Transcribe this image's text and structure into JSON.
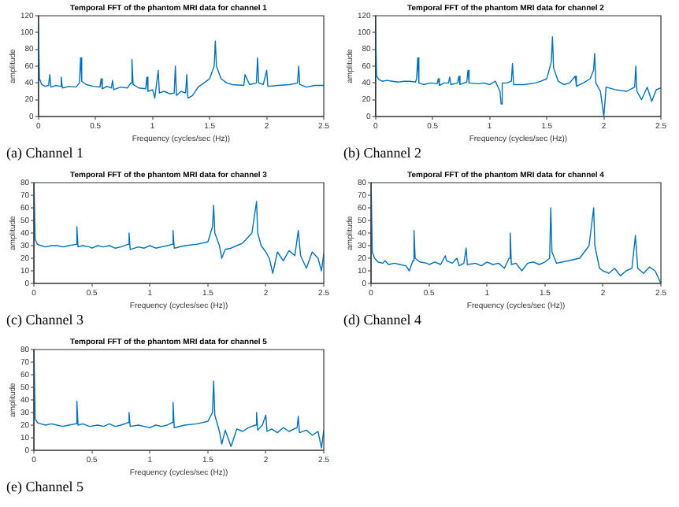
{
  "chart_data": [
    {
      "type": "line",
      "title": "Temporal FFT of the phantom MRI data for channel 1",
      "xlabel": "Frequency (cycles/sec (Hz))",
      "ylabel": "amplitude",
      "annotations": [
        "(a) Channel 1"
      ],
      "xlim": [
        0,
        2.5
      ],
      "xticks": [
        0,
        0.5,
        1,
        1.5,
        2,
        2.5
      ],
      "ylim": [
        0,
        120
      ],
      "yticks": [
        0,
        20,
        40,
        60,
        80,
        100,
        120
      ],
      "series": [
        {
          "color": "#0072bd",
          "x": [
            0,
            0.01,
            0.03,
            0.06,
            0.09,
            0.1,
            0.11,
            0.15,
            0.19,
            0.2,
            0.21,
            0.27,
            0.33,
            0.36,
            0.37,
            0.38,
            0.42,
            0.48,
            0.54,
            0.55,
            0.56,
            0.6,
            0.64,
            0.65,
            0.66,
            0.72,
            0.78,
            0.81,
            0.82,
            0.83,
            0.88,
            0.94,
            0.95,
            0.96,
            1.0,
            1.02,
            1.05,
            1.06,
            1.1,
            1.15,
            1.19,
            1.2,
            1.21,
            1.25,
            1.29,
            1.3,
            1.31,
            1.35,
            1.4,
            1.45,
            1.5,
            1.54,
            1.55,
            1.56,
            1.6,
            1.65,
            1.7,
            1.8,
            1.81,
            1.85,
            1.91,
            1.92,
            1.93,
            1.97,
            2.0,
            2.01,
            2.1,
            2.2,
            2.27,
            2.28,
            2.29,
            2.35,
            2.42,
            2.5
          ],
          "values": [
            110,
            45,
            38,
            36,
            37,
            50,
            35,
            37,
            36,
            47,
            34,
            36,
            35,
            40,
            70,
            42,
            38,
            36,
            35,
            45,
            33,
            36,
            34,
            43,
            32,
            35,
            34,
            40,
            68,
            38,
            34,
            33,
            47,
            30,
            32,
            22,
            55,
            28,
            30,
            27,
            28,
            60,
            25,
            30,
            28,
            50,
            22,
            25,
            35,
            40,
            45,
            60,
            90,
            60,
            45,
            40,
            38,
            37,
            50,
            38,
            40,
            70,
            40,
            38,
            55,
            36,
            37,
            38,
            40,
            60,
            38,
            35,
            37,
            37
          ]
        }
      ]
    },
    {
      "type": "line",
      "title": "Temporal FFT of the phantom MRI data for channel 2",
      "xlabel": "Frequency (cycles/sec (Hz))",
      "ylabel": "amplitude",
      "annotations": [
        "(b) Channel 2"
      ],
      "xlim": [
        0,
        2.5
      ],
      "xticks": [
        0,
        0.5,
        1,
        1.5,
        2,
        2.5
      ],
      "ylim": [
        0,
        120
      ],
      "yticks": [
        0,
        20,
        40,
        60,
        80,
        100,
        120
      ],
      "series": [
        {
          "color": "#0072bd",
          "x": [
            0,
            0.01,
            0.03,
            0.06,
            0.1,
            0.15,
            0.2,
            0.25,
            0.3,
            0.35,
            0.36,
            0.37,
            0.38,
            0.42,
            0.48,
            0.54,
            0.55,
            0.56,
            0.6,
            0.64,
            0.65,
            0.66,
            0.72,
            0.73,
            0.74,
            0.8,
            0.81,
            0.82,
            0.9,
            0.95,
            1.0,
            1.05,
            1.09,
            1.1,
            1.11,
            1.15,
            1.19,
            1.2,
            1.21,
            1.3,
            1.4,
            1.45,
            1.5,
            1.54,
            1.55,
            1.56,
            1.6,
            1.65,
            1.7,
            1.75,
            1.76,
            1.82,
            1.88,
            1.91,
            1.92,
            1.93,
            1.97,
            2.0,
            2.02,
            2.1,
            2.2,
            2.27,
            2.28,
            2.29,
            2.33,
            2.38,
            2.42,
            2.46,
            2.5
          ],
          "values": [
            110,
            48,
            44,
            42,
            43,
            42,
            41,
            42,
            42,
            41,
            45,
            70,
            40,
            38,
            40,
            39,
            45,
            37,
            40,
            40,
            47,
            38,
            40,
            48,
            38,
            41,
            55,
            40,
            39,
            40,
            38,
            42,
            30,
            15,
            40,
            40,
            42,
            63,
            38,
            38,
            40,
            42,
            45,
            65,
            95,
            58,
            42,
            38,
            40,
            48,
            36,
            40,
            45,
            55,
            75,
            40,
            30,
            0,
            35,
            32,
            30,
            35,
            60,
            30,
            20,
            35,
            18,
            32,
            34
          ]
        }
      ]
    },
    {
      "type": "line",
      "title": "Temporal FFT of the phantom MRI data for channel 3",
      "xlabel": "Frequency (cycles/sec (Hz))",
      "ylabel": "amplitude",
      "annotations": [
        "(c) Channel 3"
      ],
      "xlim": [
        0,
        2.5
      ],
      "xticks": [
        0,
        0.5,
        1,
        1.5,
        2,
        2.5
      ],
      "ylim": [
        0,
        80
      ],
      "yticks": [
        0,
        10,
        20,
        30,
        40,
        50,
        60,
        70,
        80
      ],
      "series": [
        {
          "color": "#0072bd",
          "x": [
            0,
            0.01,
            0.03,
            0.06,
            0.1,
            0.15,
            0.2,
            0.25,
            0.3,
            0.36,
            0.37,
            0.38,
            0.42,
            0.48,
            0.5,
            0.55,
            0.6,
            0.65,
            0.7,
            0.75,
            0.81,
            0.82,
            0.83,
            0.9,
            0.95,
            1.0,
            1.05,
            1.1,
            1.15,
            1.19,
            1.2,
            1.21,
            1.3,
            1.4,
            1.5,
            1.54,
            1.55,
            1.56,
            1.6,
            1.62,
            1.65,
            1.7,
            1.75,
            1.8,
            1.88,
            1.92,
            1.93,
            1.96,
            2.0,
            2.03,
            2.06,
            2.1,
            2.15,
            2.2,
            2.25,
            2.28,
            2.3,
            2.35,
            2.4,
            2.45,
            2.48,
            2.5
          ],
          "values": [
            80,
            35,
            31,
            30,
            29,
            30,
            30,
            29,
            30,
            31,
            45,
            29,
            30,
            29,
            28,
            30,
            29,
            30,
            28,
            29,
            31,
            40,
            27,
            29,
            28,
            30,
            28,
            29,
            30,
            31,
            42,
            28,
            30,
            31,
            33,
            45,
            62,
            40,
            30,
            20,
            27,
            28,
            30,
            32,
            40,
            65,
            40,
            30,
            25,
            20,
            8,
            25,
            18,
            26,
            22,
            42,
            22,
            12,
            25,
            20,
            10,
            24
          ]
        }
      ]
    },
    {
      "type": "line",
      "title": "Temporal FFT of the phantom MRI data for channel 4",
      "xlabel": "Frequency (cycles/sec (Hz))",
      "ylabel": "amplitude",
      "annotations": [
        "(d) Channel 4"
      ],
      "xlim": [
        0,
        2.5
      ],
      "xticks": [
        0,
        0.5,
        1,
        1.5,
        2,
        2.5
      ],
      "ylim": [
        0,
        80
      ],
      "yticks": [
        0,
        10,
        20,
        30,
        40,
        50,
        60,
        70,
        80
      ],
      "series": [
        {
          "color": "#0072bd",
          "x": [
            0,
            0.01,
            0.03,
            0.06,
            0.1,
            0.12,
            0.15,
            0.2,
            0.25,
            0.3,
            0.33,
            0.36,
            0.37,
            0.38,
            0.42,
            0.48,
            0.5,
            0.55,
            0.6,
            0.64,
            0.65,
            0.7,
            0.74,
            0.76,
            0.8,
            0.82,
            0.83,
            0.9,
            0.95,
            1.0,
            1.05,
            1.1,
            1.15,
            1.19,
            1.2,
            1.21,
            1.25,
            1.3,
            1.35,
            1.4,
            1.45,
            1.5,
            1.54,
            1.55,
            1.56,
            1.6,
            1.65,
            1.7,
            1.8,
            1.88,
            1.92,
            1.93,
            1.97,
            2.0,
            2.05,
            2.1,
            2.15,
            2.2,
            2.25,
            2.28,
            2.3,
            2.35,
            2.4,
            2.45,
            2.5
          ],
          "values": [
            80,
            25,
            20,
            17,
            16,
            18,
            15,
            16,
            15,
            14,
            10,
            18,
            42,
            20,
            17,
            16,
            15,
            17,
            15,
            22,
            18,
            16,
            20,
            14,
            16,
            28,
            15,
            16,
            14,
            17,
            15,
            16,
            12,
            20,
            40,
            15,
            16,
            10,
            16,
            17,
            15,
            17,
            20,
            60,
            25,
            16,
            17,
            18,
            20,
            30,
            60,
            30,
            12,
            10,
            8,
            12,
            6,
            10,
            12,
            38,
            12,
            8,
            13,
            10,
            0
          ]
        }
      ]
    },
    {
      "type": "line",
      "title": "Temporal FFT of the phantom MRI data for channel 5",
      "xlabel": "Frequency (cycles/sec (Hz))",
      "ylabel": "amplitude",
      "annotations": [
        "(e) Channel 5"
      ],
      "xlim": [
        0,
        2.5
      ],
      "xticks": [
        0,
        0.5,
        1,
        1.5,
        2,
        2.5
      ],
      "ylim": [
        0,
        80
      ],
      "yticks": [
        0,
        10,
        20,
        30,
        40,
        50,
        60,
        70,
        80
      ],
      "series": [
        {
          "color": "#0072bd",
          "x": [
            0,
            0.01,
            0.03,
            0.06,
            0.1,
            0.15,
            0.2,
            0.25,
            0.3,
            0.36,
            0.37,
            0.38,
            0.42,
            0.48,
            0.55,
            0.6,
            0.65,
            0.7,
            0.75,
            0.81,
            0.82,
            0.83,
            0.9,
            0.95,
            1.0,
            1.05,
            1.1,
            1.15,
            1.19,
            1.2,
            1.21,
            1.3,
            1.4,
            1.5,
            1.54,
            1.55,
            1.56,
            1.6,
            1.62,
            1.65,
            1.7,
            1.75,
            1.8,
            1.85,
            1.91,
            1.92,
            1.93,
            1.97,
            2.0,
            2.01,
            2.05,
            2.1,
            2.15,
            2.2,
            2.27,
            2.28,
            2.29,
            2.35,
            2.4,
            2.45,
            2.48,
            2.5
          ],
          "values": [
            80,
            25,
            22,
            21,
            20,
            21,
            20,
            19,
            20,
            21,
            39,
            20,
            21,
            19,
            20,
            19,
            21,
            19,
            20,
            22,
            30,
            19,
            20,
            19,
            18,
            20,
            19,
            20,
            22,
            38,
            18,
            20,
            21,
            23,
            30,
            55,
            28,
            15,
            5,
            16,
            3,
            17,
            15,
            18,
            20,
            30,
            16,
            20,
            28,
            15,
            17,
            14,
            18,
            15,
            18,
            27,
            14,
            16,
            12,
            15,
            2,
            16
          ]
        }
      ]
    }
  ]
}
